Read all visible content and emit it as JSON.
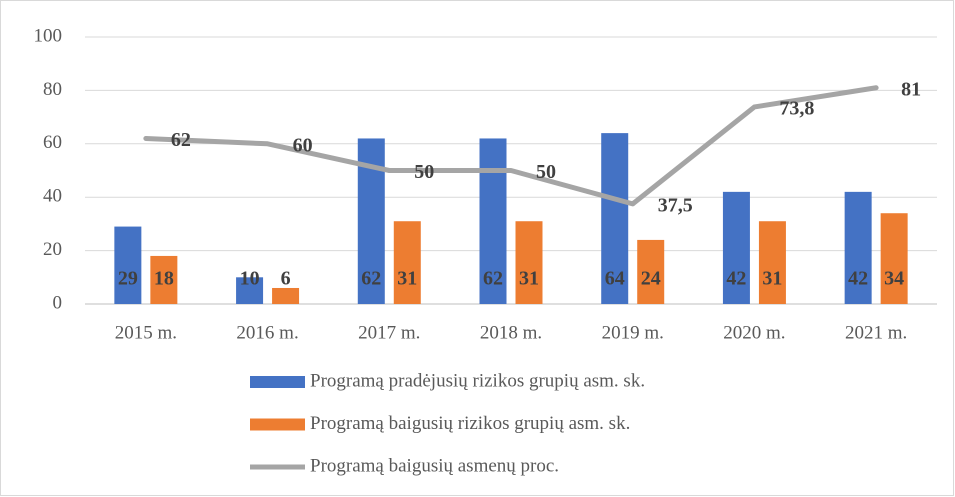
{
  "chart_data": {
    "type": "combo",
    "categories": [
      "2015 m.",
      "2016 m.",
      "2017 m.",
      "2018 m.",
      "2019 m.",
      "2020 m.",
      "2021 m."
    ],
    "series": [
      {
        "name": "Programą pradėjusių rizikos grupių asm. sk.",
        "type": "bar",
        "color": "#4472c4",
        "values": [
          29,
          10,
          62,
          62,
          64,
          42,
          42
        ]
      },
      {
        "name": "Programą baigusių rizikos grupių asm. sk.",
        "type": "bar",
        "color": "#ed7d31",
        "values": [
          18,
          6,
          31,
          31,
          24,
          31,
          34
        ]
      },
      {
        "name": "Programą baigusių asmenų proc.",
        "type": "line",
        "color": "#a5a5a5",
        "values": [
          62,
          60,
          50,
          50,
          37.5,
          73.8,
          81
        ],
        "value_labels": [
          "62",
          "60",
          "50",
          "50",
          "37,5",
          "73,8",
          "81"
        ]
      }
    ],
    "ylim": [
      0,
      100
    ],
    "yticks": [
      0,
      20,
      40,
      60,
      80,
      100
    ],
    "grid": true,
    "legend": "bottom"
  }
}
